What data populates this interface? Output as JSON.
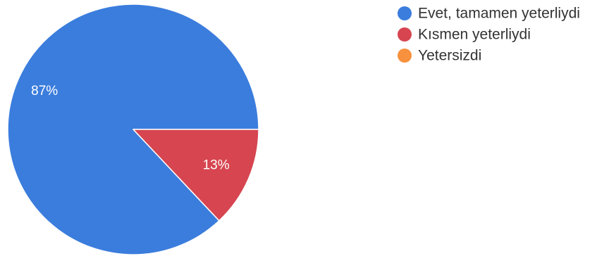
{
  "chart_data": {
    "type": "pie",
    "categories": [
      "Evet, tamamen yeterliydi",
      "Kısmen yeterliydi",
      "Yetersizdi"
    ],
    "values": [
      87,
      13,
      0
    ],
    "data_labels": [
      "87%",
      "13%",
      ""
    ],
    "colors": [
      "#3b7ddd",
      "#d64550",
      "#f7913d"
    ],
    "legend_position": "top-right"
  }
}
